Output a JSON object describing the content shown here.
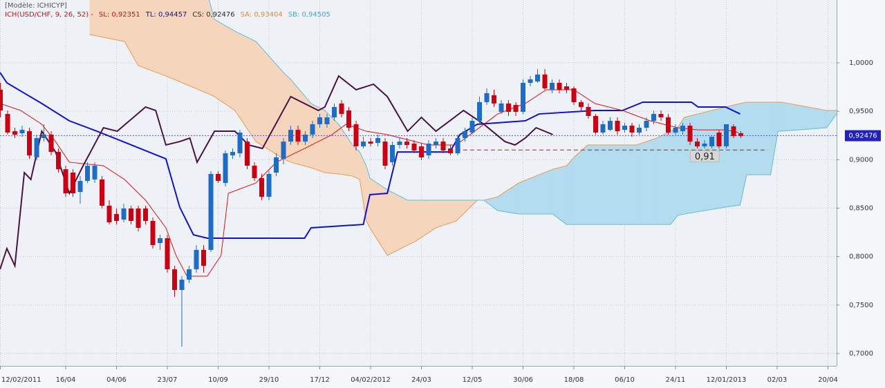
{
  "chart_data": {
    "type": "candlestick",
    "model": "[Modèle: ICHICYP]",
    "legend_items": [
      {
        "label": "ICH(USD/CHF, 9, 26, 52) -",
        "color": "#d01010"
      },
      {
        "label": "SL: 0,92351",
        "color": "#d01010"
      },
      {
        "label": "TL: 0,94457",
        "color": "#1010a0"
      },
      {
        "label": "CS: 0,92476",
        "color": "#2a2a2a"
      },
      {
        "label": "SA: 0,93404",
        "color": "#e08a2a"
      },
      {
        "label": "SB: 0,94505",
        "color": "#3aa8d8"
      }
    ],
    "xlim": [
      2.95,
      118.19
    ],
    "ylim": [
      0.6872,
      1.0648
    ],
    "grid": true,
    "up_color": "#1c6cc8",
    "down_color": "#cc0010",
    "yticks": [
      {
        "value": 0.7,
        "label": "0,7000"
      },
      {
        "value": 0.75,
        "label": "0,7500"
      },
      {
        "value": 0.8,
        "label": "0,8000"
      },
      {
        "value": 0.85,
        "label": "0,8500"
      },
      {
        "value": 0.9,
        "label": "0,9000"
      },
      {
        "value": 0.95,
        "label": "0,9500"
      },
      {
        "value": 1.0,
        "label": "1,0000"
      }
    ],
    "xticks": [
      {
        "value": 3,
        "label": "12/02/2011"
      },
      {
        "value": 12,
        "label": "16/04"
      },
      {
        "value": 19,
        "label": "04/06"
      },
      {
        "value": 26,
        "label": "23/07"
      },
      {
        "value": 33,
        "label": "10/09"
      },
      {
        "value": 40,
        "label": "29/10"
      },
      {
        "value": 47,
        "label": "17/12"
      },
      {
        "value": 54,
        "label": "04/02/2012"
      },
      {
        "value": 61,
        "label": "24/03"
      },
      {
        "value": 68,
        "label": "12/05"
      },
      {
        "value": 75,
        "label": "30/06"
      },
      {
        "value": 82,
        "label": "18/08"
      },
      {
        "value": 89,
        "label": "06/10"
      },
      {
        "value": 96,
        "label": "24/11"
      },
      {
        "value": 103,
        "label": "12/01/2013"
      },
      {
        "value": 110,
        "label": "02/03"
      },
      {
        "value": 117,
        "label": "20/04"
      }
    ],
    "x": [
      3,
      4,
      5,
      6,
      7,
      8,
      9,
      10,
      11,
      12,
      13,
      14,
      15,
      16,
      17,
      18,
      19,
      20,
      21,
      22,
      23,
      24,
      25,
      26,
      27,
      28,
      29,
      30,
      31,
      32,
      33,
      34,
      35,
      36,
      37,
      38,
      39,
      40,
      41,
      42,
      43,
      44,
      45,
      46,
      47,
      48,
      49,
      50,
      51,
      52,
      53,
      54,
      55,
      56,
      57,
      58,
      59,
      60,
      61,
      62,
      63,
      64,
      65,
      66,
      67,
      68,
      69,
      70,
      71,
      72,
      73,
      74,
      75,
      76,
      77,
      78,
      79,
      80,
      81,
      82,
      83,
      84,
      85,
      86,
      87,
      88,
      89,
      90,
      91,
      92,
      93,
      94,
      95,
      96,
      97,
      98,
      99,
      100,
      101,
      102,
      103,
      104,
      105
    ],
    "open": [
      0.9722,
      0.9472,
      0.9294,
      0.9273,
      0.9294,
      0.9024,
      0.9223,
      0.9259,
      0.908,
      0.8902,
      0.8867,
      0.8667,
      0.8781,
      0.8796,
      0.8796,
      0.8525,
      0.8439,
      0.8382,
      0.8496,
      0.8496,
      0.8496,
      0.8368,
      0.814,
      0.819,
      0.7869,
      0.7656,
      0.7762,
      0.7869,
      0.8069,
      0.8069,
      0.8853,
      0.876,
      0.9045,
      0.9066,
      0.9187,
      0.8938,
      0.881,
      0.8617,
      0.8867,
      0.9009,
      0.9187,
      0.9308,
      0.9187,
      0.9259,
      0.9366,
      0.9366,
      0.9437,
      0.958,
      0.9508,
      0.9366,
      0.9138,
      0.9187,
      0.9173,
      0.9187,
      0.8974,
      0.9152,
      0.9187,
      0.9166,
      0.9138,
      0.9045,
      0.9152,
      0.9187,
      0.9116,
      0.9066,
      0.9223,
      0.928,
      0.9401,
      0.9594,
      0.9665,
      0.9494,
      0.958,
      0.9565,
      0.9494,
      0.9793,
      0.9807,
      0.9879,
      0.9722,
      0.9793,
      0.9757,
      0.9736,
      0.9594,
      0.9544,
      0.9451,
      0.928,
      0.9308,
      0.9401,
      0.9308,
      0.9351,
      0.928,
      0.933,
      0.9401,
      0.9472,
      0.9437,
      0.928,
      0.9294,
      0.9351,
      0.9187,
      0.9138,
      0.9138,
      0.928,
      0.9138,
      0.9344,
      0.9273
    ],
    "high": [
      0.9793,
      0.9508,
      0.933,
      0.9351,
      0.933,
      0.9259,
      0.9366,
      0.9294,
      0.9116,
      0.8938,
      0.8902,
      0.8831,
      0.8974,
      0.8974,
      0.8831,
      0.8582,
      0.8496,
      0.8546,
      0.8525,
      0.8525,
      0.8525,
      0.8404,
      0.8225,
      0.8225,
      0.7905,
      0.7798,
      0.7905,
      0.8119,
      0.8119,
      0.8881,
      0.8881,
      0.9095,
      0.9116,
      0.9308,
      0.9223,
      0.8974,
      0.8853,
      0.8881,
      0.9066,
      0.9223,
      0.9351,
      0.9351,
      0.9294,
      0.9401,
      0.9472,
      0.9472,
      0.958,
      0.9615,
      0.9544,
      0.9401,
      0.9237,
      0.9223,
      0.9259,
      0.9223,
      0.9187,
      0.9223,
      0.9223,
      0.9202,
      0.9166,
      0.9202,
      0.9223,
      0.9223,
      0.9152,
      0.9259,
      0.933,
      0.9437,
      0.9651,
      0.9736,
      0.9722,
      0.9615,
      0.9615,
      0.9594,
      0.9829,
      0.9864,
      0.9935,
      0.9935,
      0.9829,
      0.9829,
      0.9793,
      0.9757,
      0.9615,
      0.958,
      0.9472,
      0.9401,
      0.9437,
      0.9437,
      0.938,
      0.938,
      0.9366,
      0.9437,
      0.9508,
      0.9508,
      0.9472,
      0.9366,
      0.938,
      0.938,
      0.9223,
      0.9202,
      0.9237,
      0.9308,
      0.9366,
      0.9366,
      0.9294
    ],
    "low": [
      0.9437,
      0.9259,
      0.9223,
      0.9237,
      0.9009,
      0.8995,
      0.9187,
      0.9045,
      0.8867,
      0.8617,
      0.8617,
      0.8546,
      0.876,
      0.876,
      0.8496,
      0.8332,
      0.8332,
      0.8354,
      0.8332,
      0.8261,
      0.8332,
      0.8083,
      0.8069,
      0.7834,
      0.7584,
      0.7071,
      0.7727,
      0.7834,
      0.7834,
      0.8048,
      0.876,
      0.8724,
      0.9009,
      0.9024,
      0.8902,
      0.8781,
      0.8582,
      0.8582,
      0.8831,
      0.8952,
      0.9152,
      0.9152,
      0.9152,
      0.9223,
      0.933,
      0.933,
      0.9401,
      0.9437,
      0.9294,
      0.9095,
      0.9116,
      0.9138,
      0.9138,
      0.8902,
      0.8938,
      0.9116,
      0.9116,
      0.9066,
      0.8995,
      0.9009,
      0.9116,
      0.9066,
      0.9045,
      0.9045,
      0.9187,
      0.9259,
      0.9366,
      0.9565,
      0.9544,
      0.9472,
      0.9451,
      0.9451,
      0.9472,
      0.9757,
      0.9793,
      0.9722,
      0.9686,
      0.9686,
      0.9686,
      0.9565,
      0.9508,
      0.9423,
      0.9259,
      0.9259,
      0.9294,
      0.9259,
      0.928,
      0.9237,
      0.9259,
      0.9294,
      0.9366,
      0.9401,
      0.9259,
      0.9259,
      0.9259,
      0.9152,
      0.9116,
      0.9116,
      0.9116,
      0.9116,
      0.9116,
      0.9223,
      0.9223
    ],
    "close": [
      0.9508,
      0.928,
      0.9259,
      0.9308,
      0.9045,
      0.9223,
      0.9259,
      0.908,
      0.8902,
      0.8653,
      0.8653,
      0.8781,
      0.8938,
      0.8938,
      0.8525,
      0.8354,
      0.8368,
      0.8496,
      0.8368,
      0.8297,
      0.8368,
      0.8119,
      0.819,
      0.7869,
      0.7656,
      0.7762,
      0.7869,
      0.8069,
      0.7905,
      0.8853,
      0.8781,
      0.9066,
      0.908,
      0.928,
      0.8938,
      0.881,
      0.8617,
      0.8853,
      0.9024,
      0.9187,
      0.9308,
      0.9187,
      0.9259,
      0.9366,
      0.9437,
      0.9437,
      0.9544,
      0.9472,
      0.933,
      0.9138,
      0.9187,
      0.9166,
      0.9223,
      0.8938,
      0.9152,
      0.9187,
      0.9152,
      0.9095,
      0.9024,
      0.9166,
      0.9187,
      0.9095,
      0.9066,
      0.9223,
      0.9294,
      0.9401,
      0.9594,
      0.9686,
      0.958,
      0.958,
      0.9494,
      0.9494,
      0.9793,
      0.9829,
      0.9879,
      0.9736,
      0.9793,
      0.9722,
      0.9722,
      0.9594,
      0.9544,
      0.9451,
      0.928,
      0.9366,
      0.9401,
      0.9294,
      0.9351,
      0.928,
      0.933,
      0.9401,
      0.9472,
      0.9437,
      0.928,
      0.933,
      0.9351,
      0.9187,
      0.9138,
      0.9166,
      0.9237,
      0.9138,
      0.9366,
      0.9244,
      0.9244
    ],
    "cloud": {
      "x": [
        15.3,
        20.1,
        22,
        25.8,
        31.5,
        32.5,
        35.3,
        38.2,
        42,
        43,
        45.8,
        47.7,
        49.6,
        51.5,
        52.5,
        53.4,
        53.9,
        56.3,
        59.1,
        60.1,
        63,
        65.8,
        68.7,
        69.6,
        71.5,
        74.4,
        79.1,
        81,
        82,
        83.9,
        90.6,
        93.4,
        95.3,
        96.3,
        97.2,
        102.9,
        104.9,
        105.8,
        109.1,
        110.1,
        110.6,
        116.8,
        118.2
      ],
      "span_a": [
        1.0292,
        1.022,
        0.9971,
        0.9864,
        0.9686,
        0.9651,
        0.9508,
        0.9187,
        0.9009,
        0.8974,
        0.8917,
        0.8867,
        0.8853,
        0.8831,
        0.8796,
        0.8368,
        0.8297,
        0.8012,
        0.8119,
        0.8154,
        0.8297,
        0.8368,
        0.8582,
        0.8582,
        0.8617,
        0.876,
        0.8902,
        0.8938,
        0.9024,
        0.9152,
        0.9152,
        0.9223,
        0.9294,
        0.933,
        0.9437,
        0.9544,
        0.958,
        0.9594,
        0.9594,
        0.9594,
        0.9594,
        0.9508,
        0.9508
      ],
      "span_b": [
        1.0719,
        1.0719,
        1.0719,
        1.0719,
        1.0719,
        1.0448,
        1.0327,
        1.022,
        0.99,
        0.9829,
        0.958,
        0.9508,
        0.9366,
        0.9152,
        0.908,
        0.8938,
        0.881,
        0.8689,
        0.8582,
        0.8582,
        0.8582,
        0.8582,
        0.8582,
        0.8582,
        0.8475,
        0.8439,
        0.8439,
        0.8332,
        0.8332,
        0.8332,
        0.8332,
        0.8332,
        0.8332,
        0.8425,
        0.8439,
        0.8511,
        0.8532,
        0.8845,
        0.8845,
        0.9294,
        0.9294,
        0.933,
        0.9472
      ],
      "color_a": "#e89a50",
      "color_b": "#5bbfdc",
      "fill_up": "#f5d6bc",
      "fill_down": "#b3dcee"
    },
    "overlays": {
      "tenkan": {
        "color": "#e01010",
        "width": 1,
        "x": [
          2.95,
          5.8,
          8.7,
          10.6,
          12.5,
          17.2,
          20.1,
          23,
          25.8,
          27.2,
          28.7,
          31.5,
          33.4,
          34.4,
          38.2,
          41,
          44.9,
          48.7,
          50.6,
          53.4,
          56.3,
          62,
          65.8,
          67.7,
          71.5,
          75.3,
          78.2,
          82,
          84.9,
          88.7,
          92.5,
          96.3,
          99.1,
          102.9,
          104.7
        ],
        "values": [
          0.958,
          0.9508,
          0.9366,
          0.9187,
          0.8974,
          0.8938,
          0.8796,
          0.8582,
          0.8297,
          0.8012,
          0.7798,
          0.7798,
          0.8012,
          0.8653,
          0.876,
          0.8974,
          0.9116,
          0.9259,
          0.9366,
          0.9294,
          0.9259,
          0.9152,
          0.9152,
          0.9259,
          0.9472,
          0.958,
          0.9722,
          0.9722,
          0.958,
          0.9508,
          0.9401,
          0.933,
          0.9308,
          0.9308,
          0.928
        ]
      },
      "kijun": {
        "color": "#1010d8",
        "width": 2,
        "x": [
          2.95,
          3.9,
          8.7,
          12.5,
          16.3,
          18.7,
          25.8,
          27.7,
          29.6,
          31.5,
          44.9,
          45.8,
          53,
          53.9,
          56.3,
          57.7,
          64.9,
          66.3,
          68.7,
          75.3,
          77.2,
          84.9,
          88.7,
          91.5,
          98.2,
          99.1,
          102.9,
          104.9
        ],
        "values": [
          0.99,
          0.9793,
          0.958,
          0.9401,
          0.9294,
          0.9223,
          0.9009,
          0.8511,
          0.8225,
          0.819,
          0.819,
          0.8297,
          0.8332,
          0.8639,
          0.8653,
          0.908,
          0.908,
          0.9259,
          0.9366,
          0.9401,
          0.9472,
          0.9508,
          0.9508,
          0.9594,
          0.9594,
          0.9544,
          0.9544,
          0.9472
        ]
      },
      "chikou": {
        "color": "#4a1046",
        "width": 2,
        "x": [
          2.95,
          3.9,
          5,
          6.3,
          7.2,
          8.7,
          10.6,
          12.5,
          14.4,
          17.2,
          19.1,
          23,
          24.4,
          25.8,
          27.7,
          29.1,
          30.1,
          32.5,
          35.3,
          37.2,
          39.1,
          43,
          46.8,
          47.7,
          49.6,
          52,
          54.4,
          56.3,
          59.1,
          61,
          63,
          64.9,
          66.8,
          69.6,
          72.5,
          73.9,
          75.3,
          76.8,
          79.1
        ],
        "values": [
          0.7869,
          0.8083,
          0.7905,
          0.8867,
          0.8796,
          0.9294,
          0.908,
          0.8653,
          0.8938,
          0.933,
          0.9294,
          0.9544,
          0.9508,
          0.9152,
          0.9187,
          0.9223,
          0.8974,
          0.9294,
          0.9294,
          0.9152,
          0.9116,
          0.9651,
          0.9508,
          0.9544,
          0.9864,
          0.9722,
          0.9779,
          0.9651,
          0.9294,
          0.9437,
          0.9294,
          0.9401,
          0.9508,
          0.9366,
          0.9187,
          0.9152,
          0.9223,
          0.933,
          0.9259
        ]
      }
    },
    "current_price": {
      "value": 0.92476,
      "label": "0,92476",
      "color": "#2020c0"
    },
    "level": {
      "value": 0.91,
      "label": "0,91",
      "x": [
        65.8,
        108.7
      ],
      "color": "#cc1010"
    }
  }
}
